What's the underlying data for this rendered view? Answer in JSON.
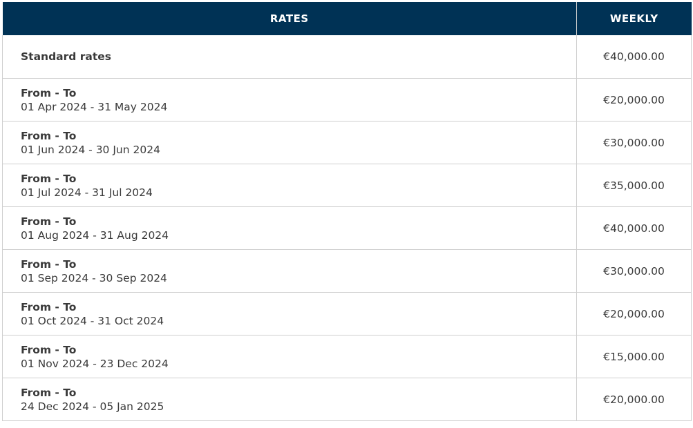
{
  "header": {
    "rates_label": "RATES",
    "weekly_label": "WEEKLY"
  },
  "standard": {
    "label": "Standard rates",
    "price": "€40,000.00"
  },
  "periods": [
    {
      "label": "From - To",
      "dates": "01 Apr 2024 - 31 May 2024",
      "price": "€20,000.00"
    },
    {
      "label": "From - To",
      "dates": "01 Jun 2024 - 30 Jun 2024",
      "price": "€30,000.00"
    },
    {
      "label": "From - To",
      "dates": "01 Jul 2024 - 31 Jul 2024",
      "price": "€35,000.00"
    },
    {
      "label": "From - To",
      "dates": "01 Aug 2024 - 31 Aug 2024",
      "price": "€40,000.00"
    },
    {
      "label": "From - To",
      "dates": "01 Sep 2024 - 30 Sep 2024",
      "price": "€30,000.00"
    },
    {
      "label": "From - To",
      "dates": "01 Oct 2024 - 31 Oct 2024",
      "price": "€20,000.00"
    },
    {
      "label": "From - To",
      "dates": "01 Nov 2024 - 23 Dec 2024",
      "price": "€15,000.00"
    },
    {
      "label": "From - To",
      "dates": "24 Dec 2024 - 05 Jan 2025",
      "price": "€20,000.00"
    }
  ],
  "colors": {
    "header_bg": "#003255",
    "header_text": "#ffffff",
    "border": "#cfcfcf",
    "text": "#3a3a3a"
  }
}
